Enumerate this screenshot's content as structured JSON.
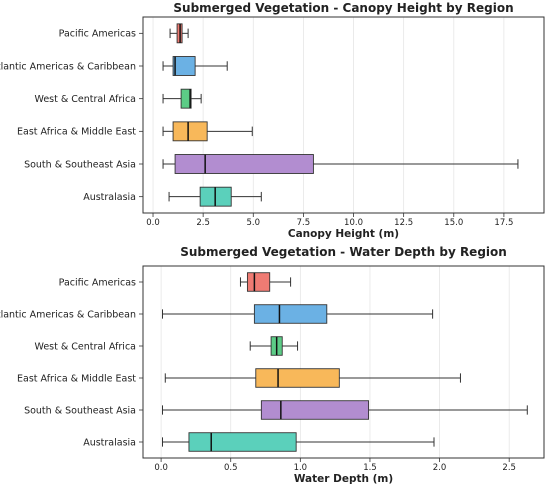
{
  "colors": {
    "Pacific Americas": "#ef7b73",
    "Atlantic Americas & Caribbean": "#6bb1e4",
    "West & Central Africa": "#5ccc86",
    "East Africa & Middle East": "#f8b85a",
    "South & Southeast Asia": "#b28dd0",
    "Australasia": "#5bd0bb"
  },
  "chart_data": [
    {
      "type": "boxplot",
      "title": "Submerged Vegetation - Canopy Height by Region",
      "xlabel": "Canopy Height (m)",
      "ylabel": "",
      "xlim": [
        -0.5,
        19.5
      ],
      "xticks": [
        0.0,
        2.5,
        5.0,
        7.5,
        10.0,
        12.5,
        15.0,
        17.5
      ],
      "xtick_labels": [
        "0.0",
        "2.5",
        "5.0",
        "7.5",
        "10.0",
        "12.5",
        "15.0",
        "17.5"
      ],
      "grid": "vertical",
      "categories": [
        "Pacific Americas",
        "Atlantic Americas & Caribbean",
        "West & Central Africa",
        "East Africa & Middle East",
        "South & Southeast Asia",
        "Australasia"
      ],
      "boxes": [
        {
          "min": 0.85,
          "q1": 1.2,
          "median": 1.35,
          "q3": 1.45,
          "max": 1.75
        },
        {
          "min": 0.5,
          "q1": 1.0,
          "median": 1.1,
          "q3": 2.1,
          "max": 3.7
        },
        {
          "min": 0.5,
          "q1": 1.4,
          "median": 1.85,
          "q3": 1.9,
          "max": 2.4
        },
        {
          "min": 0.5,
          "q1": 1.0,
          "median": 1.75,
          "q3": 2.7,
          "max": 4.95
        },
        {
          "min": 0.5,
          "q1": 1.1,
          "median": 2.6,
          "q3": 8.0,
          "max": 18.2
        },
        {
          "min": 0.8,
          "q1": 2.35,
          "median": 3.1,
          "q3": 3.9,
          "max": 5.4
        }
      ]
    },
    {
      "type": "boxplot",
      "title": "Submerged Vegetation - Water Depth by Region",
      "xlabel": "Water Depth (m)",
      "ylabel": "",
      "xlim": [
        -0.13,
        2.75
      ],
      "xticks": [
        0.0,
        0.5,
        1.0,
        1.5,
        2.0,
        2.5
      ],
      "xtick_labels": [
        "0.0",
        "0.5",
        "1.0",
        "1.5",
        "2.0",
        "2.5"
      ],
      "grid": "vertical",
      "categories": [
        "Pacific Americas",
        "Atlantic Americas & Caribbean",
        "West & Central Africa",
        "East Africa & Middle East",
        "South & Southeast Asia",
        "Australasia"
      ],
      "boxes": [
        {
          "min": 0.57,
          "q1": 0.62,
          "median": 0.67,
          "q3": 0.78,
          "max": 0.93
        },
        {
          "min": 0.01,
          "q1": 0.67,
          "median": 0.85,
          "q3": 1.19,
          "max": 1.95
        },
        {
          "min": 0.64,
          "q1": 0.79,
          "median": 0.83,
          "q3": 0.87,
          "max": 0.98
        },
        {
          "min": 0.03,
          "q1": 0.68,
          "median": 0.84,
          "q3": 1.28,
          "max": 2.15
        },
        {
          "min": 0.01,
          "q1": 0.72,
          "median": 0.86,
          "q3": 1.49,
          "max": 2.63
        },
        {
          "min": 0.01,
          "q1": 0.2,
          "median": 0.36,
          "q3": 0.97,
          "max": 1.96
        }
      ]
    }
  ]
}
